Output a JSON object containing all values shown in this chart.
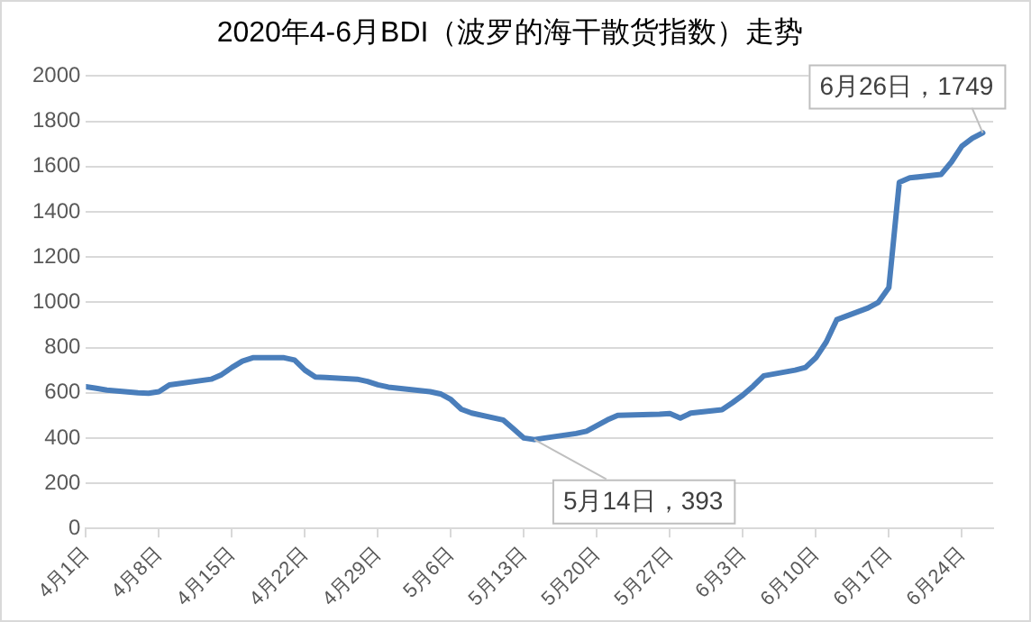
{
  "chart_data": {
    "type": "line",
    "title": "2020年4-6月BDI（波罗的海干散货指数）走势",
    "x": [
      "2020-04-01",
      "2020-04-02",
      "2020-04-03",
      "2020-04-06",
      "2020-04-07",
      "2020-04-08",
      "2020-04-09",
      "2020-04-13",
      "2020-04-14",
      "2020-04-15",
      "2020-04-16",
      "2020-04-17",
      "2020-04-20",
      "2020-04-21",
      "2020-04-22",
      "2020-04-23",
      "2020-04-24",
      "2020-04-27",
      "2020-04-28",
      "2020-04-29",
      "2020-04-30",
      "2020-05-04",
      "2020-05-05",
      "2020-05-06",
      "2020-05-07",
      "2020-05-08",
      "2020-05-11",
      "2020-05-12",
      "2020-05-13",
      "2020-05-14",
      "2020-05-15",
      "2020-05-18",
      "2020-05-19",
      "2020-05-20",
      "2020-05-21",
      "2020-05-22",
      "2020-05-26",
      "2020-05-27",
      "2020-05-28",
      "2020-05-29",
      "2020-06-01",
      "2020-06-02",
      "2020-06-03",
      "2020-06-04",
      "2020-06-05",
      "2020-06-08",
      "2020-06-09",
      "2020-06-10",
      "2020-06-11",
      "2020-06-12",
      "2020-06-15",
      "2020-06-16",
      "2020-06-17",
      "2020-06-18",
      "2020-06-19",
      "2020-06-22",
      "2020-06-23",
      "2020-06-24",
      "2020-06-25",
      "2020-06-26"
    ],
    "series": [
      {
        "color": "#4a7ebb",
        "values": [
          627,
          620,
          612,
          600,
          598,
          605,
          635,
          660,
          680,
          712,
          740,
          755,
          755,
          745,
          700,
          670,
          668,
          660,
          650,
          635,
          625,
          605,
          595,
          570,
          527,
          510,
          480,
          440,
          400,
          393,
          400,
          420,
          430,
          455,
          480,
          500,
          505,
          508,
          488,
          510,
          525,
          556,
          590,
          630,
          675,
          700,
          712,
          755,
          825,
          923,
          975,
          1000,
          1065,
          1530,
          1550,
          1565,
          1620,
          1690,
          1725,
          1749
        ]
      }
    ],
    "xlim": [
      "2020-04-01",
      "2020-06-27"
    ],
    "xticks": [
      {
        "value": "2020-04-01",
        "label": "4月1日"
      },
      {
        "value": "2020-04-08",
        "label": "4月8日"
      },
      {
        "value": "2020-04-15",
        "label": "4月15日"
      },
      {
        "value": "2020-04-22",
        "label": "4月22日"
      },
      {
        "value": "2020-04-29",
        "label": "4月29日"
      },
      {
        "value": "2020-05-06",
        "label": "5月6日"
      },
      {
        "value": "2020-05-13",
        "label": "5月13日"
      },
      {
        "value": "2020-05-20",
        "label": "5月20日"
      },
      {
        "value": "2020-05-27",
        "label": "5月27日"
      },
      {
        "value": "2020-06-03",
        "label": "6月3日"
      },
      {
        "value": "2020-06-10",
        "label": "6月10日"
      },
      {
        "value": "2020-06-17",
        "label": "6月17日"
      },
      {
        "value": "2020-06-24",
        "label": "6月24日"
      }
    ],
    "ylim": [
      0,
      2000
    ],
    "yticks": [
      0,
      200,
      400,
      600,
      800,
      1000,
      1200,
      1400,
      1600,
      1800,
      2000
    ],
    "grid": "y",
    "legend": false,
    "marker": "none",
    "line_style": "solid",
    "annotations": [
      {
        "text": "5月14日，393",
        "x": "2020-05-14",
        "y": 393
      },
      {
        "text": "6月26日，1749",
        "x": "2020-06-26",
        "y": 1749
      }
    ]
  }
}
